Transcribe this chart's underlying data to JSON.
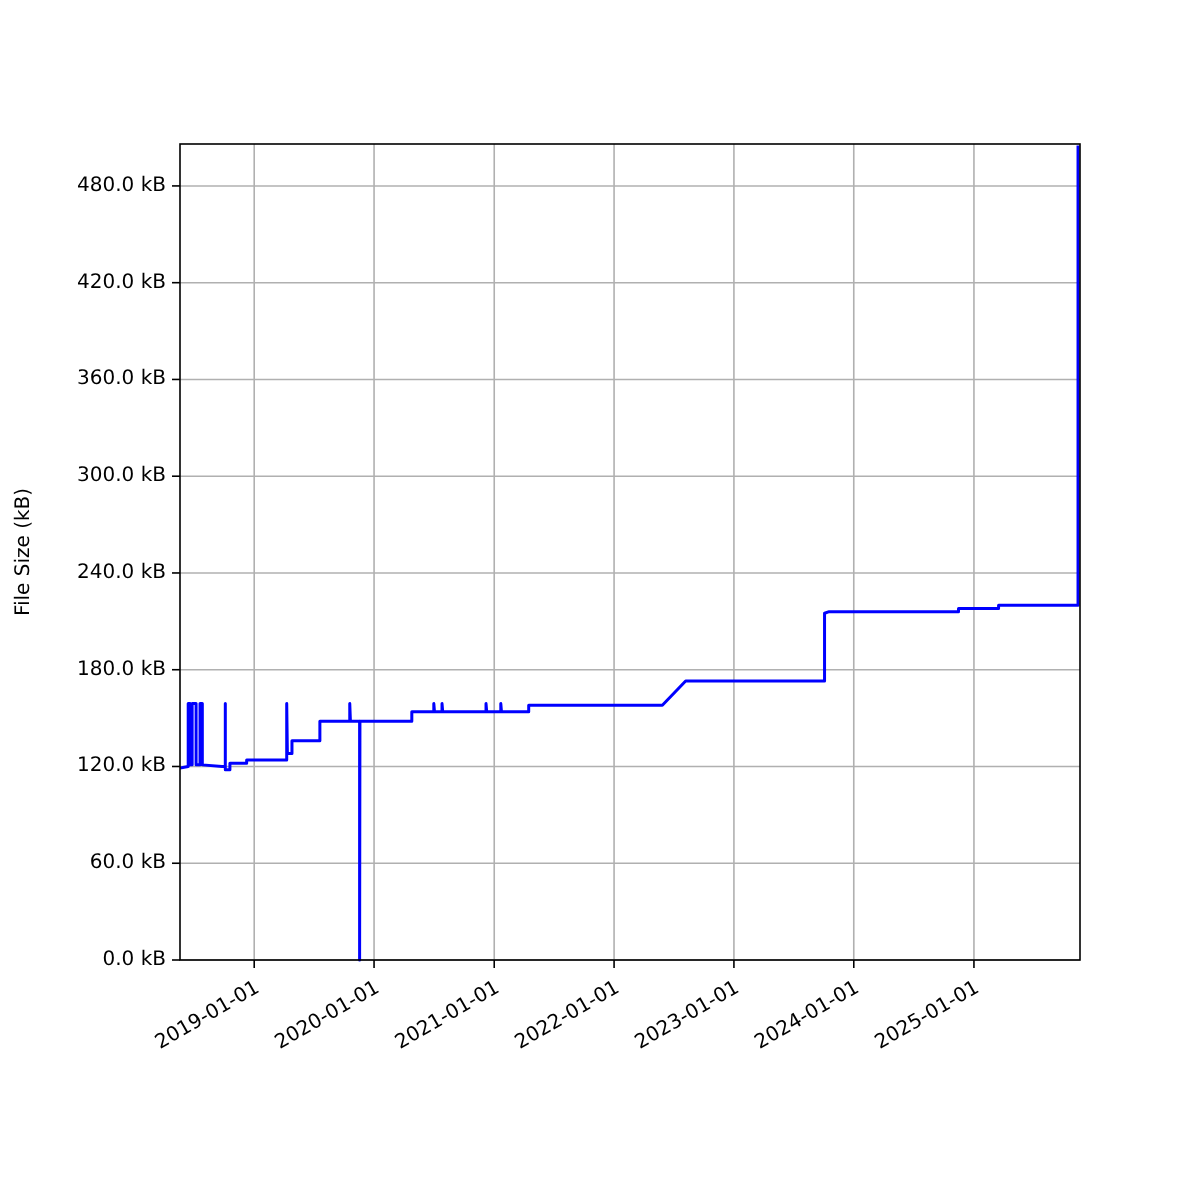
{
  "chart_data": {
    "type": "line",
    "ylabel": "File Size (kB)",
    "grid": true,
    "marker": "none",
    "line_style": "solid",
    "xlim": [
      "2018-05-20",
      "2025-11-20"
    ],
    "ylim": [
      0,
      506
    ],
    "xticks": [
      "2019-01-01",
      "2020-01-01",
      "2021-01-01",
      "2022-01-01",
      "2023-01-01",
      "2024-01-01",
      "2025-01-01"
    ],
    "yticks": [
      {
        "value": 0,
        "label": "0.0 kB"
      },
      {
        "value": 60,
        "label": "60.0 kB"
      },
      {
        "value": 120,
        "label": "120.0 kB"
      },
      {
        "value": 180,
        "label": "180.0 kB"
      },
      {
        "value": 240,
        "label": "240.0 kB"
      },
      {
        "value": 300,
        "label": "300.0 kB"
      },
      {
        "value": 360,
        "label": "360.0 kB"
      },
      {
        "value": 420,
        "label": "420.0 kB"
      },
      {
        "value": 480,
        "label": "480.0 kB"
      }
    ],
    "series": [
      {
        "color": "#0000ff",
        "x": [
          "2018-05-20",
          "2018-06-14",
          "2018-06-14",
          "2018-06-20",
          "2018-06-20",
          "2018-06-26",
          "2018-06-26",
          "2018-07-08",
          "2018-07-08",
          "2018-07-20",
          "2018-07-20",
          "2018-07-27",
          "2018-07-27",
          "2018-09-25",
          "2018-10-05",
          "2018-10-05",
          "2018-10-05",
          "2018-10-19",
          "2018-10-19",
          "2018-12-09",
          "2018-12-09",
          "2019-04-10",
          "2019-04-10",
          "2019-04-12",
          "2019-04-26",
          "2019-04-26",
          "2019-07-20",
          "2019-07-20",
          "2019-10-19",
          "2019-10-19",
          "2019-10-21",
          "2019-11-18",
          "2019-11-18",
          "2019-11-19",
          "2020-04-25",
          "2020-04-25",
          "2020-07-01",
          "2020-07-01",
          "2020-07-03",
          "2020-07-26",
          "2020-07-26",
          "2020-07-28",
          "2020-12-07",
          "2020-12-07",
          "2020-12-09",
          "2021-01-21",
          "2021-01-21",
          "2021-01-23",
          "2021-04-16",
          "2021-04-16",
          "2022-05-28",
          "2022-08-07",
          "2023-10-04",
          "2023-10-04",
          "2023-10-18",
          "2024-11-15",
          "2024-11-15",
          "2025-03-17",
          "2025-03-17",
          "2025-11-14",
          "2025-11-14"
        ],
        "values": [
          119,
          120,
          159,
          159,
          121,
          121,
          159,
          159,
          121,
          121,
          159,
          159,
          121,
          120,
          120,
          159,
          118,
          118,
          122,
          122,
          124,
          124,
          159,
          128,
          128,
          136,
          136,
          148,
          148,
          159,
          148,
          148,
          0,
          148,
          148,
          154,
          154,
          159,
          154,
          154,
          159,
          154,
          154,
          159,
          154,
          154,
          159,
          154,
          154,
          158,
          158,
          173,
          173,
          215,
          216,
          216,
          218,
          218,
          220,
          220,
          505
        ]
      }
    ]
  }
}
